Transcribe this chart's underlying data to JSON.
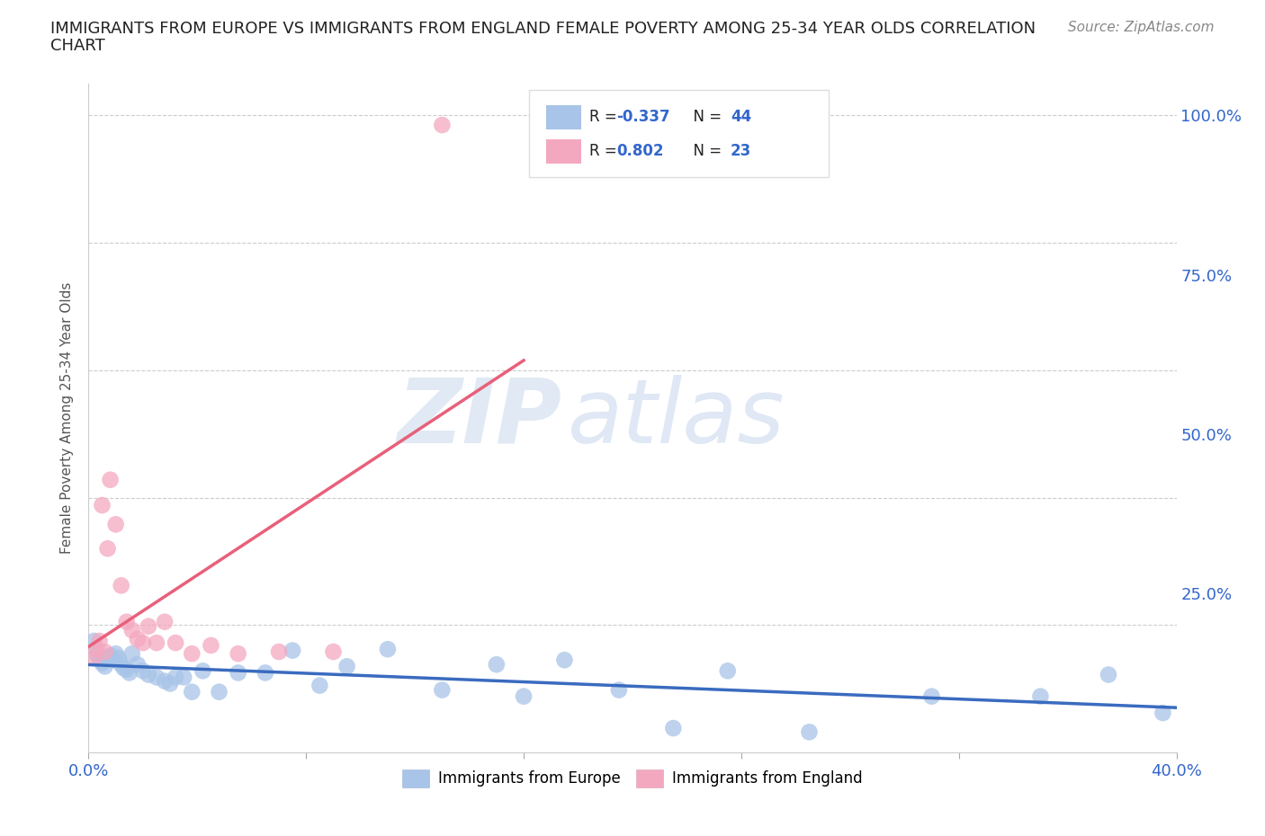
{
  "title_line1": "IMMIGRANTS FROM EUROPE VS IMMIGRANTS FROM ENGLAND FEMALE POVERTY AMONG 25-34 YEAR OLDS CORRELATION",
  "title_line2": "CHART",
  "source": "Source: ZipAtlas.com",
  "ylabel": "Female Poverty Among 25-34 Year Olds",
  "xlim": [
    0.0,
    0.4
  ],
  "ylim": [
    0.0,
    1.05
  ],
  "xticks": [
    0.0,
    0.08,
    0.16,
    0.24,
    0.32,
    0.4
  ],
  "yticks": [
    0.0,
    0.25,
    0.5,
    0.75,
    1.0
  ],
  "ytick_labels": [
    "",
    "25.0%",
    "50.0%",
    "75.0%",
    "100.0%"
  ],
  "xtick_labels": [
    "0.0%",
    "",
    "",
    "",
    "",
    "40.0%"
  ],
  "blue_R": "-0.337",
  "blue_N": "44",
  "pink_R": "0.802",
  "pink_N": "23",
  "blue_color": "#a8c4e8",
  "pink_color": "#f4a8bf",
  "blue_line_color": "#3a6bbf",
  "pink_line_color": "#e8607a",
  "watermark_zip": "ZIP",
  "watermark_atlas": "atlas",
  "europe_x": [
    0.002,
    0.003,
    0.004,
    0.005,
    0.006,
    0.007,
    0.008,
    0.009,
    0.01,
    0.011,
    0.012,
    0.013,
    0.014,
    0.015,
    0.016,
    0.018,
    0.02,
    0.022,
    0.025,
    0.028,
    0.03,
    0.032,
    0.035,
    0.038,
    0.042,
    0.048,
    0.055,
    0.065,
    0.075,
    0.085,
    0.095,
    0.11,
    0.13,
    0.15,
    0.16,
    0.175,
    0.195,
    0.215,
    0.235,
    0.265,
    0.31,
    0.35,
    0.375,
    0.395
  ],
  "europe_y": [
    0.175,
    0.155,
    0.148,
    0.14,
    0.135,
    0.148,
    0.152,
    0.145,
    0.155,
    0.148,
    0.138,
    0.132,
    0.13,
    0.125,
    0.155,
    0.138,
    0.128,
    0.122,
    0.118,
    0.112,
    0.108,
    0.118,
    0.118,
    0.095,
    0.128,
    0.095,
    0.125,
    0.125,
    0.16,
    0.105,
    0.135,
    0.162,
    0.098,
    0.138,
    0.088,
    0.145,
    0.098,
    0.038,
    0.128,
    0.032,
    0.088,
    0.088,
    0.122,
    0.062
  ],
  "england_x": [
    0.002,
    0.003,
    0.004,
    0.005,
    0.006,
    0.007,
    0.008,
    0.01,
    0.012,
    0.014,
    0.016,
    0.018,
    0.02,
    0.022,
    0.025,
    0.028,
    0.032,
    0.038,
    0.045,
    0.055,
    0.07,
    0.09,
    0.13
  ],
  "england_y": [
    0.148,
    0.162,
    0.175,
    0.388,
    0.158,
    0.32,
    0.428,
    0.358,
    0.262,
    0.205,
    0.192,
    0.178,
    0.172,
    0.198,
    0.172,
    0.205,
    0.172,
    0.155,
    0.168,
    0.155,
    0.158,
    0.158,
    0.985
  ]
}
